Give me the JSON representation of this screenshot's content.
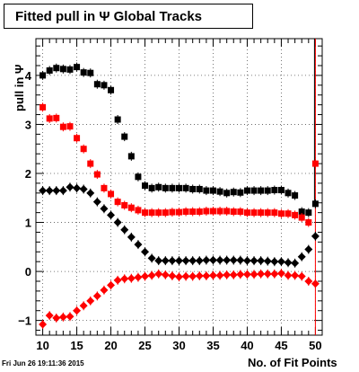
{
  "chart_data": {
    "type": "scatter",
    "title": "Fitted pull in  Ψ   Global Tracks",
    "xlabel": "No. of Fit Points",
    "ylabel": "pull in  Ψ",
    "xlim": [
      9,
      51
    ],
    "ylim": [
      -1.3,
      4.75
    ],
    "xticks": [
      "10",
      "15",
      "20",
      "25",
      "30",
      "35",
      "40",
      "45",
      "50"
    ],
    "yticks": [
      "−1",
      "0",
      "1",
      "2",
      "3",
      "4"
    ],
    "grid": true,
    "x": [
      10,
      11,
      12,
      13,
      14,
      15,
      16,
      17,
      18,
      19,
      20,
      21,
      22,
      23,
      24,
      25,
      26,
      27,
      28,
      29,
      30,
      31,
      32,
      33,
      34,
      35,
      36,
      37,
      38,
      39,
      40,
      41,
      42,
      43,
      44,
      45,
      46,
      47,
      48,
      49,
      50
    ],
    "series": [
      {
        "color": "#000000",
        "marker": "square",
        "values": [
          4.0,
          4.1,
          4.15,
          4.13,
          4.12,
          4.17,
          4.06,
          4.05,
          3.82,
          3.8,
          3.7,
          3.1,
          2.75,
          2.35,
          1.93,
          1.75,
          1.7,
          1.72,
          1.7,
          1.7,
          1.7,
          1.7,
          1.68,
          1.68,
          1.65,
          1.65,
          1.63,
          1.6,
          1.62,
          1.61,
          1.65,
          1.65,
          1.65,
          1.65,
          1.66,
          1.66,
          1.6,
          1.55,
          1.22,
          1.2,
          1.38
        ]
      },
      {
        "color": "#ff0000",
        "marker": "square",
        "values": [
          3.35,
          3.12,
          3.13,
          2.95,
          2.96,
          2.72,
          2.5,
          2.2,
          1.98,
          1.7,
          1.58,
          1.42,
          1.35,
          1.3,
          1.25,
          1.2,
          1.2,
          1.2,
          1.2,
          1.21,
          1.21,
          1.22,
          1.22,
          1.22,
          1.23,
          1.23,
          1.23,
          1.23,
          1.22,
          1.22,
          1.2,
          1.2,
          1.2,
          1.2,
          1.2,
          1.18,
          1.18,
          1.15,
          1.1,
          1.0,
          2.2
        ]
      },
      {
        "color": "#000000",
        "marker": "diamond",
        "values": [
          1.65,
          1.65,
          1.65,
          1.65,
          1.72,
          1.7,
          1.68,
          1.6,
          1.42,
          1.28,
          1.15,
          1.0,
          0.85,
          0.7,
          0.55,
          0.4,
          0.27,
          0.22,
          0.22,
          0.22,
          0.22,
          0.22,
          0.22,
          0.22,
          0.23,
          0.23,
          0.23,
          0.23,
          0.23,
          0.23,
          0.22,
          0.22,
          0.22,
          0.21,
          0.2,
          0.2,
          0.18,
          0.17,
          0.3,
          0.45,
          0.72
        ]
      },
      {
        "color": "#ff0000",
        "marker": "diamond",
        "values": [
          -1.08,
          -0.9,
          -0.95,
          -0.93,
          -0.92,
          -0.8,
          -0.7,
          -0.6,
          -0.5,
          -0.38,
          -0.28,
          -0.18,
          -0.15,
          -0.14,
          -0.12,
          -0.1,
          -0.08,
          -0.05,
          -0.07,
          -0.09,
          -0.11,
          -0.1,
          -0.1,
          -0.09,
          -0.09,
          -0.08,
          -0.08,
          -0.07,
          -0.07,
          -0.06,
          -0.06,
          -0.06,
          -0.05,
          -0.05,
          -0.05,
          -0.04,
          -0.08,
          -0.08,
          -0.1,
          -0.2,
          -0.25
        ]
      }
    ]
  },
  "page": {
    "datestamp": "Fri Jun 26 19:11:36 2015"
  }
}
